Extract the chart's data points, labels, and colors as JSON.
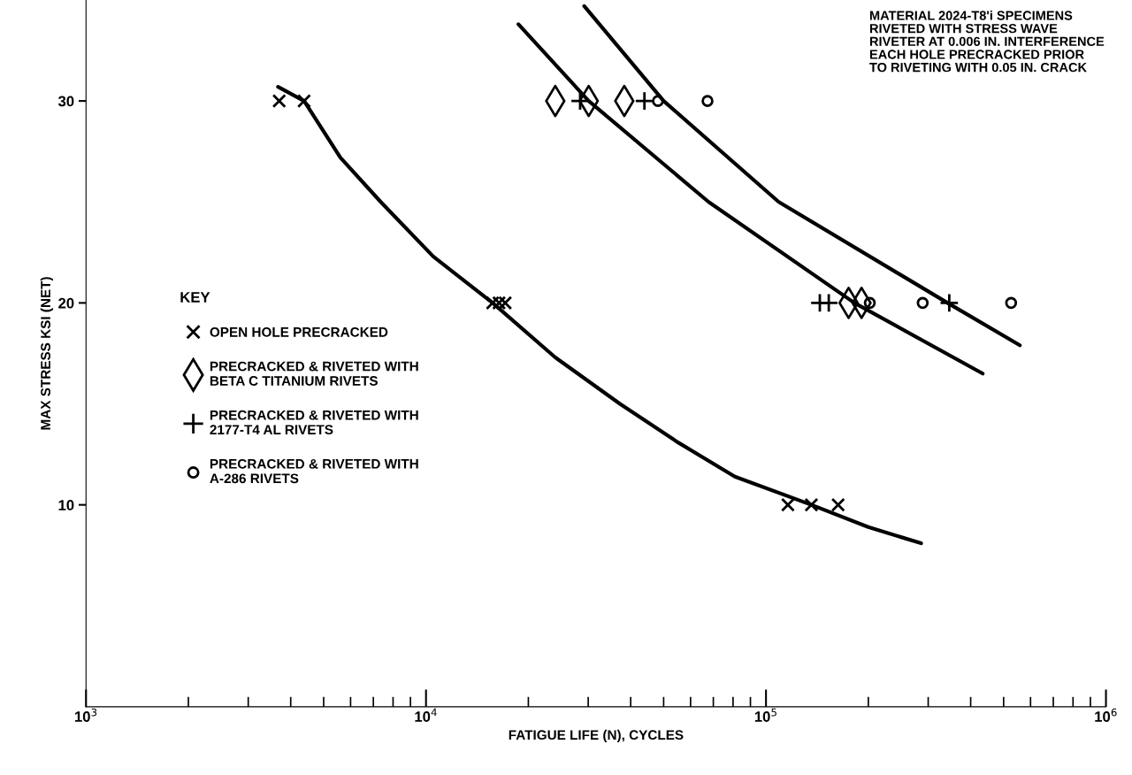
{
  "chart_data": {
    "type": "scatter",
    "xlabel": "FATIGUE LIFE (N), CYCLES",
    "ylabel": "MAX STRESS KSI (NET)",
    "log": "x",
    "xlim": [
      1000,
      1000000
    ],
    "xticks": [
      {
        "value": 1000,
        "label": "10$^{3}$"
      },
      {
        "value": 10000,
        "label": "10$^{4}$"
      },
      {
        "value": 100000,
        "label": "10$^{5}$"
      },
      {
        "value": 1000000,
        "label": "10$^{6}$"
      }
    ],
    "ylim": [
      0,
      35
    ],
    "yticks": [
      10,
      20,
      30
    ],
    "grid": false,
    "legend": "center left",
    "legend_title": "KEY",
    "annotations": [
      "MATERIAL 2024-T8'i SPECIMENS\nRIVETED WITH STRESS WAVE\nRIVETER AT 0.006 IN. INTERFERENCE\nEACH HOLE PRECRACKED PRIOR\nTO RIVETING WITH 0.05 IN. CRACK"
    ],
    "series": [
      {
        "name": "OPEN HOLE PRECRACKED",
        "color": "#000000",
        "marker": "cross",
        "x": [
          3700,
          4380,
          15700,
          16400,
          17100,
          116000,
          136000,
          163000
        ],
        "values": [
          30,
          30,
          20,
          20,
          20,
          10,
          10,
          10
        ]
      },
      {
        "name": "PRECRACKED & RIVETED WITH\nBETA C TITANIUM RIVETS",
        "color": "#000000",
        "marker": "diamond",
        "x": [
          24000,
          30100,
          38300,
          175000,
          191000
        ],
        "values": [
          30,
          30,
          30,
          20,
          20
        ]
      },
      {
        "name": "PRECRACKED & RIVETED WITH\n2177-T4 AL RIVETS",
        "color": "#000000",
        "marker": "plus",
        "x": [
          28400,
          43900,
          144000,
          153000,
          346000
        ],
        "values": [
          30,
          30,
          20,
          20,
          20
        ]
      },
      {
        "name": "PRECRACKED & RIVETED WITH\nA-286 RIVETS",
        "color": "#000000",
        "marker": "circle",
        "x": [
          48100,
          67300,
          202000,
          289000,
          526000
        ],
        "values": [
          30,
          30,
          20,
          20,
          20
        ]
      },
      {
        "type": "line",
        "color": "#000000",
        "x": [
          3670,
          4380,
          5600,
          7360,
          10500,
          15700,
          24000,
          37200,
          55000,
          81000,
          136000,
          200000,
          286000
        ],
        "values": [
          30.7,
          30,
          27.2,
          25,
          22.3,
          20,
          17.3,
          15,
          13.1,
          11.4,
          10,
          8.9,
          8.1
        ]
      },
      {
        "type": "line",
        "color": "#000000",
        "x": [
          18700,
          30100,
          67800,
          182000,
          434000
        ],
        "values": [
          33.8,
          30,
          25,
          20,
          16.5
        ]
      },
      {
        "type": "line",
        "color": "#000000",
        "x": [
          29200,
          50000,
          109000,
          342000,
          558000
        ],
        "values": [
          34.7,
          30,
          25,
          20,
          17.9
        ]
      }
    ]
  }
}
